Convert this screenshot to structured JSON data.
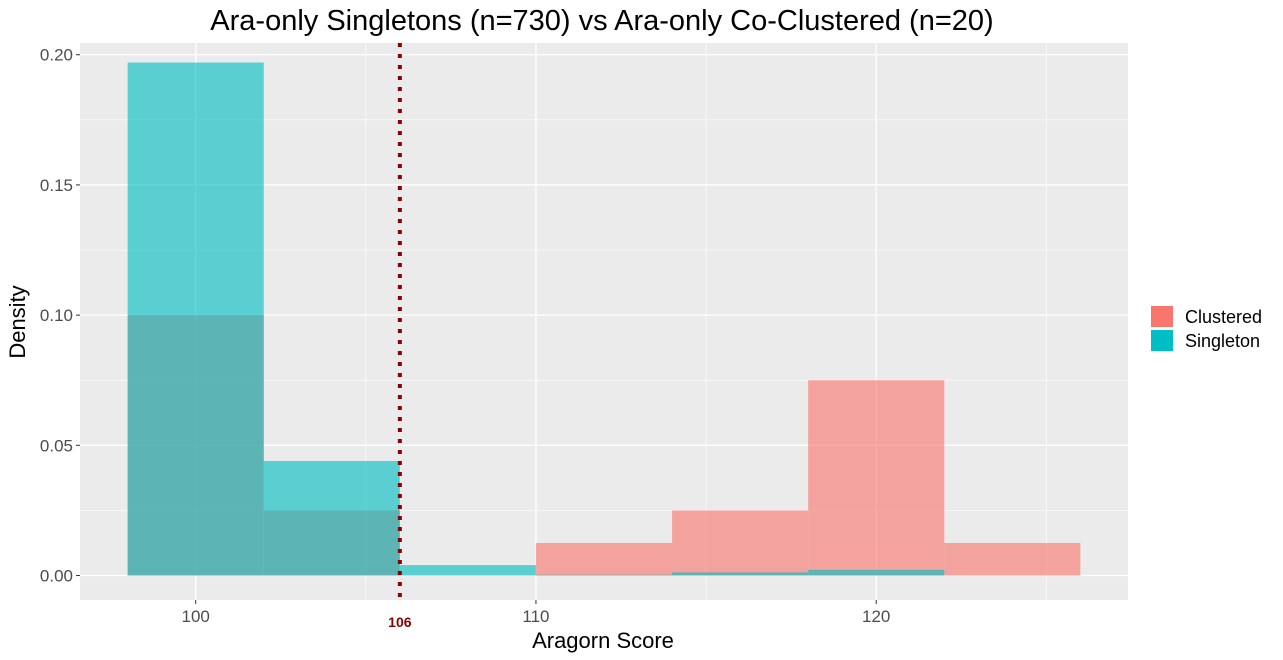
{
  "chart_data": {
    "type": "bar",
    "title": "Ara-only Singletons (n=730) vs Ara-only Co-Clustered (n=20)",
    "xlabel": "Aragorn Score",
    "ylabel": "Density",
    "xlim": [
      96.6,
      127.4
    ],
    "ylim": [
      -0.0094,
      0.2045
    ],
    "x_ticks": [
      {
        "value": 100,
        "label": "100"
      },
      {
        "value": 110,
        "label": "110"
      },
      {
        "value": 120,
        "label": "120"
      }
    ],
    "y_ticks": [
      {
        "value": 0.0,
        "label": "0.00"
      },
      {
        "value": 0.05,
        "label": "0.05"
      },
      {
        "value": 0.1,
        "label": "0.10"
      },
      {
        "value": 0.15,
        "label": "0.15"
      },
      {
        "value": 0.2,
        "label": "0.20"
      }
    ],
    "bin_width": 4,
    "series": [
      {
        "name": "Clustered",
        "color": "#F8766D",
        "bins": [
          {
            "start": 98,
            "end": 102,
            "value": 0.1
          },
          {
            "start": 102,
            "end": 106,
            "value": 0.025
          },
          {
            "start": 106,
            "end": 110,
            "value": 0.0
          },
          {
            "start": 110,
            "end": 114,
            "value": 0.0125
          },
          {
            "start": 114,
            "end": 118,
            "value": 0.025
          },
          {
            "start": 118,
            "end": 122,
            "value": 0.075
          },
          {
            "start": 122,
            "end": 126,
            "value": 0.0125
          }
        ]
      },
      {
        "name": "Singleton",
        "color": "#00BFC4",
        "bins": [
          {
            "start": 98,
            "end": 102,
            "value": 0.197
          },
          {
            "start": 102,
            "end": 106,
            "value": 0.044
          },
          {
            "start": 106,
            "end": 110,
            "value": 0.004
          },
          {
            "start": 110,
            "end": 114,
            "value": 0.0003
          },
          {
            "start": 114,
            "end": 118,
            "value": 0.0012
          },
          {
            "start": 118,
            "end": 122,
            "value": 0.0022
          },
          {
            "start": 122,
            "end": 126,
            "value": 0.0
          }
        ]
      }
    ],
    "reference_line": {
      "x": 106,
      "label": "106",
      "color": "#8B0000",
      "style": "dotted"
    },
    "legend": {
      "position": "right"
    },
    "grid": true,
    "panel_background": "#EBEBEB"
  }
}
